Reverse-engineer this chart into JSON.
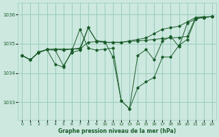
{
  "background_color": "#cce8df",
  "grid_color": "#99ccbb",
  "line_color": "#1a5c2a",
  "title": "Graphe pression niveau de la mer (hPa)",
  "xlim": [
    -0.5,
    23.5
  ],
  "ylim": [
    1032.4,
    1036.4
  ],
  "yticks": [
    1033,
    1034,
    1035,
    1036
  ],
  "xticks": [
    0,
    1,
    2,
    3,
    4,
    5,
    6,
    7,
    8,
    9,
    10,
    11,
    12,
    13,
    14,
    15,
    16,
    17,
    18,
    19,
    20,
    21,
    22,
    23
  ],
  "series": [
    {
      "x": [
        0,
        1,
        2,
        3,
        4,
        5,
        6,
        7,
        8,
        9,
        10,
        11,
        12,
        13,
        14,
        15,
        16,
        17,
        18,
        19,
        20,
        21,
        22,
        23
      ],
      "y": [
        1034.6,
        1034.45,
        1034.7,
        1034.8,
        1034.82,
        1034.78,
        1034.82,
        1034.82,
        1035.05,
        1035.08,
        1035.05,
        1035.05,
        1035.05,
        1035.08,
        1035.1,
        1035.12,
        1035.15,
        1035.18,
        1035.2,
        1035.22,
        1035.25,
        1035.9,
        1035.92,
        1035.93
      ]
    },
    {
      "x": [
        0,
        1,
        2,
        3,
        4,
        5,
        6,
        7,
        8,
        9,
        10,
        11,
        12,
        13,
        14,
        15,
        16,
        17,
        18,
        19,
        20,
        21,
        22,
        23
      ],
      "y": [
        1034.6,
        1034.45,
        1034.7,
        1034.8,
        1034.82,
        1034.82,
        1034.82,
        1034.85,
        1035.55,
        1035.1,
        1035.05,
        1035.05,
        1035.05,
        1035.1,
        1035.15,
        1035.2,
        1035.35,
        1035.5,
        1035.55,
        1035.6,
        1035.75,
        1035.9,
        1035.92,
        1035.93
      ]
    },
    {
      "x": [
        0,
        1,
        2,
        3,
        4,
        5,
        6,
        7,
        8,
        9,
        10,
        11,
        12,
        13,
        14,
        15,
        16,
        17,
        18,
        19,
        20,
        21,
        22,
        23
      ],
      "y": [
        1034.6,
        1034.45,
        1034.72,
        1034.8,
        1034.3,
        1034.2,
        1034.75,
        1035.5,
        1034.85,
        1034.78,
        1034.82,
        1034.85,
        1033.05,
        1032.78,
        1033.5,
        1033.7,
        1033.85,
        1034.55,
        1034.55,
        1034.95,
        1035.15,
        1035.85,
        1035.9,
        1035.93
      ]
    },
    {
      "x": [
        0,
        1,
        2,
        3,
        4,
        5,
        6,
        7,
        8,
        9,
        10,
        11,
        12,
        13,
        14,
        15,
        16,
        17,
        18,
        19,
        20,
        21,
        22,
        23
      ],
      "y": [
        1034.6,
        1034.45,
        1034.72,
        1034.8,
        1034.78,
        1034.25,
        1034.7,
        1034.78,
        1035.55,
        1035.1,
        1035.08,
        1034.55,
        1033.05,
        1032.78,
        1034.6,
        1034.8,
        1034.45,
        1035.1,
        1035.25,
        1034.9,
        1035.7,
        1035.85,
        1035.9,
        1035.93
      ]
    }
  ]
}
